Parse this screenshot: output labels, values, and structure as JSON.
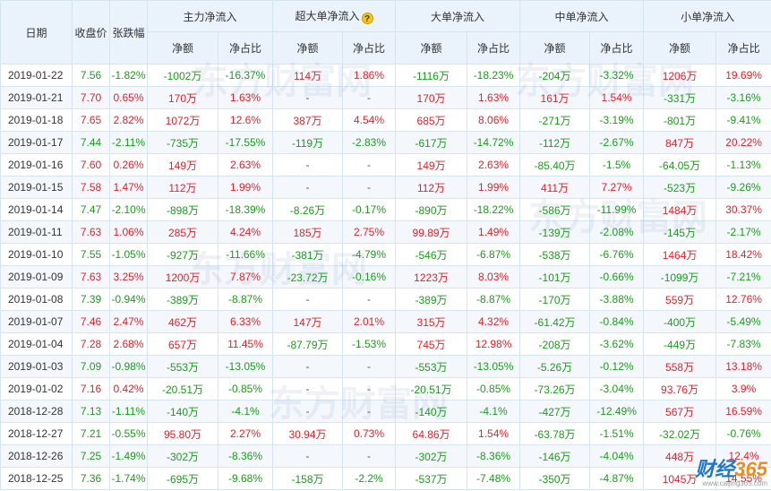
{
  "headers": {
    "date": "日期",
    "close": "收盘价",
    "change": "张跌幅",
    "groups": [
      "主力净流入",
      "超大单净流入",
      "大单净流入",
      "中单净流入",
      "小单净流入"
    ],
    "net": "净额",
    "ratio": "净占比"
  },
  "rows": [
    {
      "date": "2019-01-22",
      "close": "7.56",
      "change": "-1.82%",
      "cells": [
        "-1002万",
        "-16.37%",
        "114万",
        "1.86%",
        "-1116万",
        "-18.23%",
        "-204万",
        "-3.32%",
        "1206万",
        "19.69%"
      ]
    },
    {
      "date": "2019-01-21",
      "close": "7.70",
      "change": "0.65%",
      "cells": [
        "170万",
        "1.63%",
        "-",
        "-",
        "170万",
        "1.63%",
        "161万",
        "1.54%",
        "-331万",
        "-3.16%"
      ]
    },
    {
      "date": "2019-01-18",
      "close": "7.65",
      "change": "2.82%",
      "cells": [
        "1072万",
        "12.6%",
        "387万",
        "4.54%",
        "685万",
        "8.06%",
        "-271万",
        "-3.19%",
        "-801万",
        "-9.41%"
      ]
    },
    {
      "date": "2019-01-17",
      "close": "7.44",
      "change": "-2.11%",
      "cells": [
        "-735万",
        "-17.55%",
        "-119万",
        "-2.83%",
        "-617万",
        "-14.72%",
        "-112万",
        "-2.67%",
        "847万",
        "20.22%"
      ]
    },
    {
      "date": "2019-01-16",
      "close": "7.60",
      "change": "0.26%",
      "cells": [
        "149万",
        "2.63%",
        "-",
        "-",
        "149万",
        "2.63%",
        "-85.40万",
        "-1.5%",
        "-64.05万",
        "-1.13%"
      ]
    },
    {
      "date": "2019-01-15",
      "close": "7.58",
      "change": "1.47%",
      "cells": [
        "112万",
        "1.99%",
        "-",
        "-",
        "112万",
        "1.99%",
        "411万",
        "7.27%",
        "-523万",
        "-9.26%"
      ]
    },
    {
      "date": "2019-01-14",
      "close": "7.47",
      "change": "-2.10%",
      "cells": [
        "-898万",
        "-18.39%",
        "-8.26万",
        "-0.17%",
        "-890万",
        "-18.22%",
        "-586万",
        "-11.99%",
        "1484万",
        "30.37%"
      ]
    },
    {
      "date": "2019-01-11",
      "close": "7.63",
      "change": "1.06%",
      "cells": [
        "285万",
        "4.24%",
        "185万",
        "2.75%",
        "99.89万",
        "1.49%",
        "-139万",
        "-2.08%",
        "-145万",
        "-2.17%"
      ]
    },
    {
      "date": "2019-01-10",
      "close": "7.55",
      "change": "-1.05%",
      "cells": [
        "-927万",
        "-11.66%",
        "-381万",
        "-4.79%",
        "-546万",
        "-6.87%",
        "-538万",
        "-6.76%",
        "1464万",
        "18.42%"
      ]
    },
    {
      "date": "2019-01-09",
      "close": "7.63",
      "change": "3.25%",
      "cells": [
        "1200万",
        "7.87%",
        "-23.72万",
        "-0.16%",
        "1223万",
        "8.03%",
        "-101万",
        "-0.66%",
        "-1099万",
        "-7.21%"
      ]
    },
    {
      "date": "2019-01-08",
      "close": "7.39",
      "change": "-0.94%",
      "cells": [
        "-389万",
        "-8.87%",
        "-",
        "-",
        "-389万",
        "-8.87%",
        "-170万",
        "-3.88%",
        "559万",
        "12.76%"
      ]
    },
    {
      "date": "2019-01-07",
      "close": "7.46",
      "change": "2.47%",
      "cells": [
        "462万",
        "6.33%",
        "147万",
        "2.01%",
        "315万",
        "4.32%",
        "-61.42万",
        "-0.84%",
        "-400万",
        "-5.49%"
      ]
    },
    {
      "date": "2019-01-04",
      "close": "7.28",
      "change": "2.68%",
      "cells": [
        "657万",
        "11.45%",
        "-87.79万",
        "-1.53%",
        "745万",
        "12.98%",
        "-208万",
        "-3.62%",
        "-449万",
        "-7.83%"
      ]
    },
    {
      "date": "2019-01-03",
      "close": "7.09",
      "change": "-0.98%",
      "cells": [
        "-553万",
        "-13.05%",
        "-",
        "-",
        "-553万",
        "-13.05%",
        "-5.26万",
        "-0.12%",
        "558万",
        "13.18%"
      ]
    },
    {
      "date": "2019-01-02",
      "close": "7.16",
      "change": "0.42%",
      "cells": [
        "-20.51万",
        "-0.85%",
        "-",
        "-",
        "-20.51万",
        "-0.85%",
        "-73.26万",
        "-3.04%",
        "93.76万",
        "3.9%"
      ]
    },
    {
      "date": "2018-12-28",
      "close": "7.13",
      "change": "-1.11%",
      "cells": [
        "-140万",
        "-4.1%",
        "-",
        "-",
        "-140万",
        "-4.1%",
        "-427万",
        "-12.49%",
        "567万",
        "16.59%"
      ]
    },
    {
      "date": "2018-12-27",
      "close": "7.21",
      "change": "-0.55%",
      "cells": [
        "95.80万",
        "2.27%",
        "30.94万",
        "0.73%",
        "64.86万",
        "1.54%",
        "-63.78万",
        "-1.51%",
        "-32.02万",
        "-0.76%"
      ]
    },
    {
      "date": "2018-12-26",
      "close": "7.25",
      "change": "-1.49%",
      "cells": [
        "-302万",
        "-8.36%",
        "-",
        "-",
        "-302万",
        "-8.36%",
        "-146万",
        "-4.04%",
        "448万",
        "12.4%"
      ]
    },
    {
      "date": "2018-12-25",
      "close": "7.36",
      "change": "-1.74%",
      "cells": [
        "-695万",
        "-9.68%",
        "-158万",
        "-2.2%",
        "-537万",
        "-7.48%",
        "-350万",
        "-4.87%",
        "1045万",
        "14.55%"
      ]
    }
  ],
  "logo": {
    "text_cn": "财经",
    "text_num": "365",
    "url": "www.caijing365.com"
  },
  "colors": {
    "positive": "#e0222a",
    "negative": "#1d9a1d",
    "header_bg": "#eaf2fb",
    "border": "#d6e4f0"
  }
}
